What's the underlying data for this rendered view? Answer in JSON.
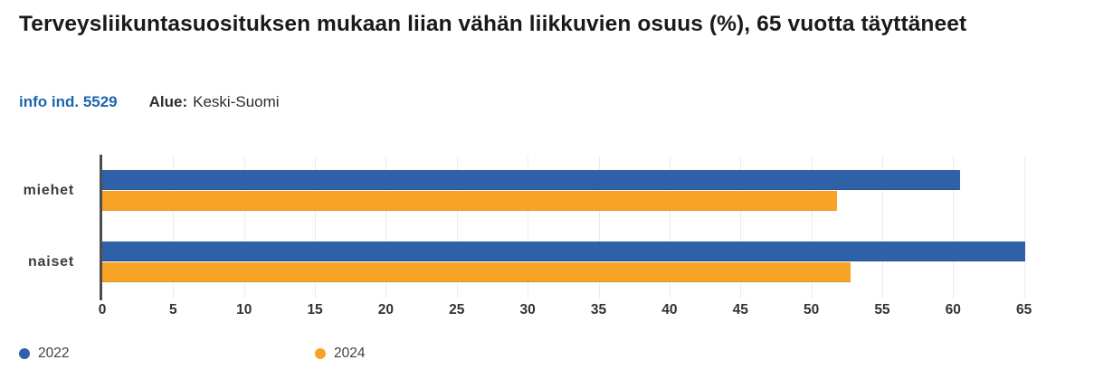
{
  "header": {
    "title": "Terveysliikuntasuosituksen mukaan liian vähän liikkuvien osuus (%), 65 vuotta täyttäneet",
    "info_link_label": "info ind. 5529",
    "area_label": "Alue:",
    "area_value": "Keski-Suomi"
  },
  "colors": {
    "series_2022": "#2e61a8",
    "series_2024": "#f7a426",
    "link_blue": "#1e64ad",
    "axis_line": "#4d4d4d",
    "gridline": "#ececec"
  },
  "chart_data": {
    "type": "bar",
    "orientation": "horizontal",
    "title": "Terveysliikuntasuosituksen mukaan liian vähän liikkuvien osuus (%), 65 vuotta täyttäneet",
    "categories": [
      "miehet",
      "naiset"
    ],
    "series": [
      {
        "name": "2022",
        "color": "#2e61a8",
        "values": [
          60.5,
          65.1
        ]
      },
      {
        "name": "2024",
        "color": "#f7a426",
        "values": [
          51.8,
          52.8
        ]
      }
    ],
    "xlabel": "",
    "ylabel": "",
    "x_ticks": [
      0,
      5,
      10,
      15,
      20,
      25,
      30,
      35,
      40,
      45,
      50,
      55,
      60,
      65
    ],
    "xlim": [
      0,
      67
    ],
    "grid": "vertical-gridlines",
    "legend_position": "bottom",
    "unit": "%"
  }
}
